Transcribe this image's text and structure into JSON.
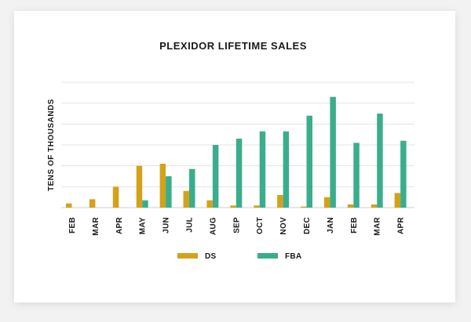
{
  "chart_data": {
    "type": "bar",
    "title": "PLEXIDOR LIFETIME SALES",
    "xlabel": "",
    "ylabel": "TENS OF THOUSANDS",
    "categories": [
      "FEB",
      "MAR",
      "APR",
      "MAY",
      "JUN",
      "JUL",
      "AUG",
      "SEP",
      "OCT",
      "NOV",
      "DEC",
      "JAN",
      "FEB",
      "MAR",
      "APR"
    ],
    "series": [
      {
        "name": "DS",
        "color": "#d4a21a",
        "values": [
          0.2,
          0.4,
          1.0,
          2.0,
          2.1,
          0.8,
          0.35,
          0.1,
          0.1,
          0.6,
          0.05,
          0.5,
          0.15,
          0.15,
          0.7
        ]
      },
      {
        "name": "FBA",
        "color": "#3aae8c",
        "values": [
          0,
          0,
          0,
          0.35,
          1.5,
          1.85,
          3.0,
          3.3,
          3.65,
          3.65,
          4.4,
          5.3,
          3.1,
          4.5,
          3.2
        ]
      }
    ],
    "ylim": [
      0,
      6
    ],
    "grid": true,
    "legend_position": "bottom-center"
  }
}
